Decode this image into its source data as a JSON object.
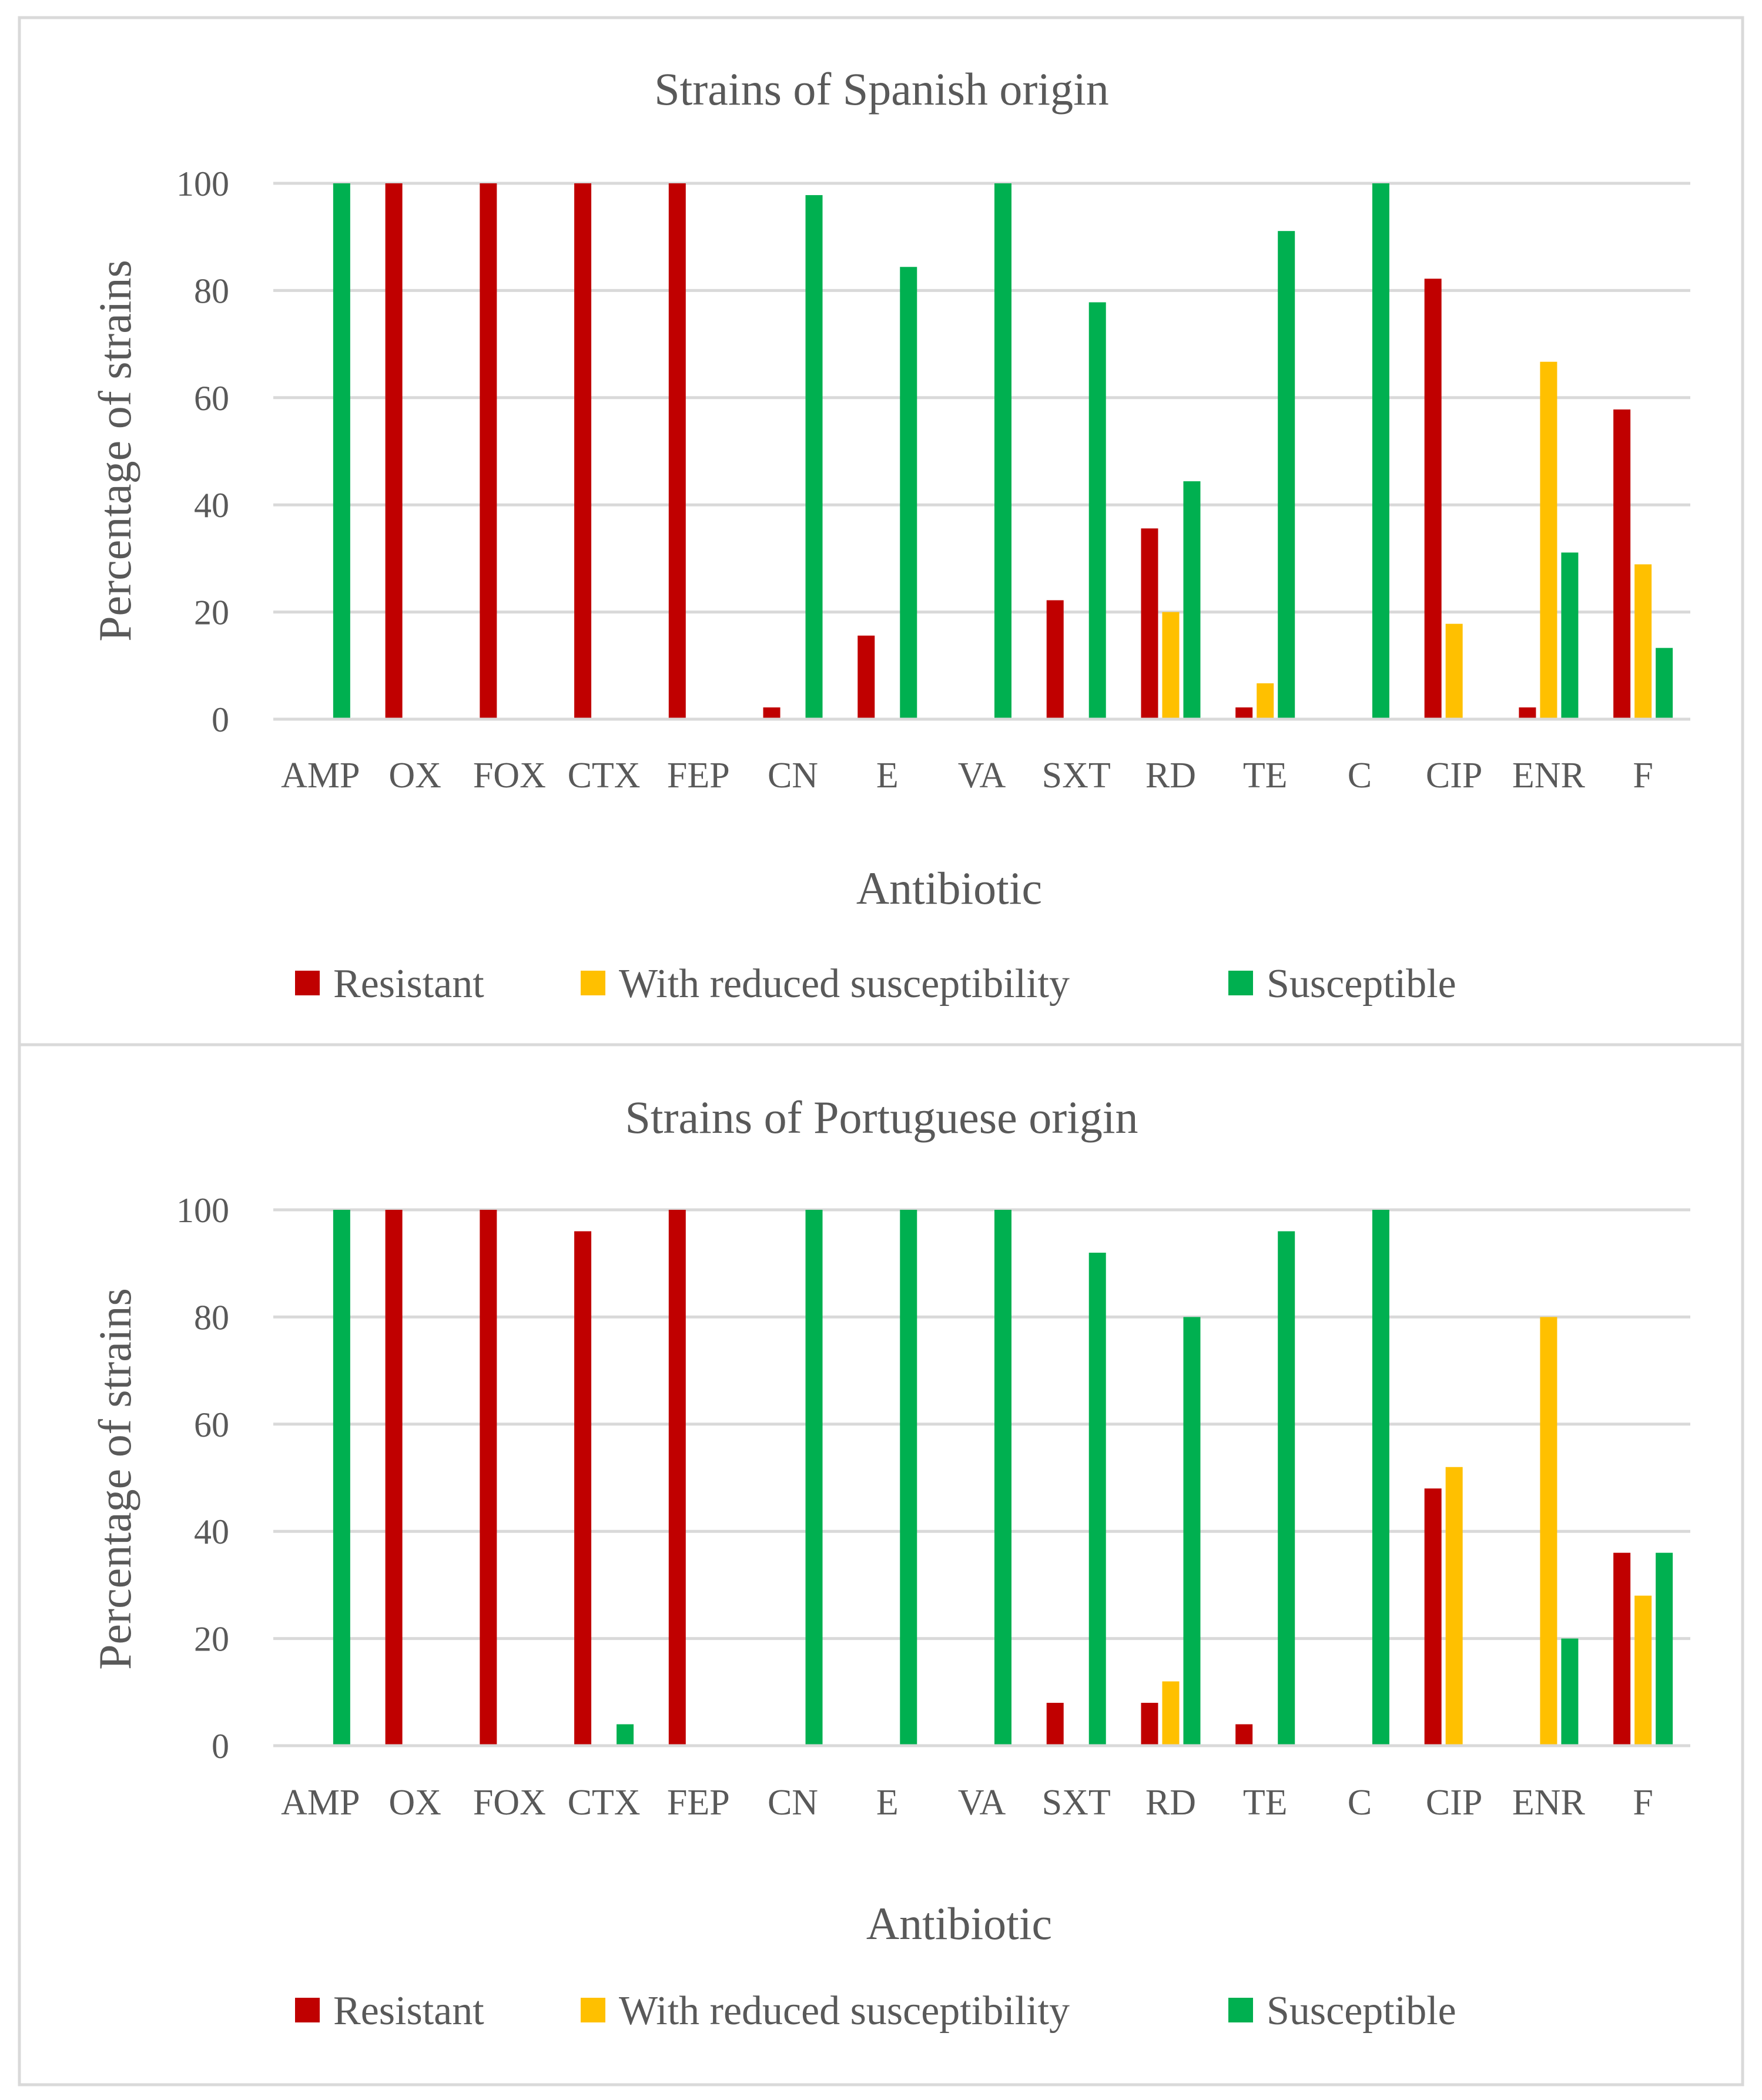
{
  "chart_data": [
    {
      "type": "bar",
      "title": "Strains of Spanish origin",
      "xlabel": "Antibiotic",
      "ylabel": "Percentage of strains",
      "ylim": [
        0,
        100
      ],
      "yticks": [
        0,
        20,
        40,
        60,
        80,
        100
      ],
      "grid": true,
      "legend_position": "bottom",
      "categories": [
        "AMP",
        "OX",
        "FOX",
        "CTX",
        "FEP",
        "CN",
        "E",
        "VA",
        "SXT",
        "RD",
        "TE",
        "C",
        "CIP",
        "ENR",
        "F"
      ],
      "series": [
        {
          "name": "Resistant",
          "color": "#C00000",
          "values": [
            0,
            100,
            100,
            100,
            100,
            2.2,
            15.6,
            0,
            22.2,
            35.6,
            2.2,
            0,
            82.2,
            2.2,
            57.8
          ]
        },
        {
          "name": "With reduced susceptibility",
          "color": "#FFC000",
          "values": [
            0,
            0,
            0,
            0,
            0,
            0,
            0,
            0,
            0,
            20,
            6.7,
            0,
            17.8,
            66.7,
            28.9
          ]
        },
        {
          "name": "Susceptible",
          "color": "#00B050",
          "values": [
            100,
            0,
            0,
            0,
            0,
            97.8,
            84.4,
            100,
            77.8,
            44.4,
            91.1,
            100,
            0,
            31.1,
            13.3
          ]
        }
      ]
    },
    {
      "type": "bar",
      "title": "Strains of Portuguese origin",
      "xlabel": "Antibiotic",
      "ylabel": "Percentage of strains",
      "ylim": [
        0,
        100
      ],
      "yticks": [
        0,
        20,
        40,
        60,
        80,
        100
      ],
      "grid": true,
      "legend_position": "bottom",
      "categories": [
        "AMP",
        "OX",
        "FOX",
        "CTX",
        "FEP",
        "CN",
        "E",
        "VA",
        "SXT",
        "RD",
        "TE",
        "C",
        "CIP",
        "ENR",
        "F"
      ],
      "series": [
        {
          "name": "Resistant",
          "color": "#C00000",
          "values": [
            0,
            100,
            100,
            96,
            100,
            0,
            0,
            0,
            8,
            8,
            4,
            0,
            48,
            0,
            36
          ]
        },
        {
          "name": "With reduced susceptibility",
          "color": "#FFC000",
          "values": [
            0,
            0,
            0,
            0,
            0,
            0,
            0,
            0,
            0,
            12,
            0,
            0,
            52,
            80,
            28
          ]
        },
        {
          "name": "Susceptible",
          "color": "#00B050",
          "values": [
            100,
            0,
            0,
            4,
            0,
            100,
            100,
            100,
            92,
            80,
            96,
            100,
            0,
            20,
            36
          ]
        }
      ]
    }
  ]
}
